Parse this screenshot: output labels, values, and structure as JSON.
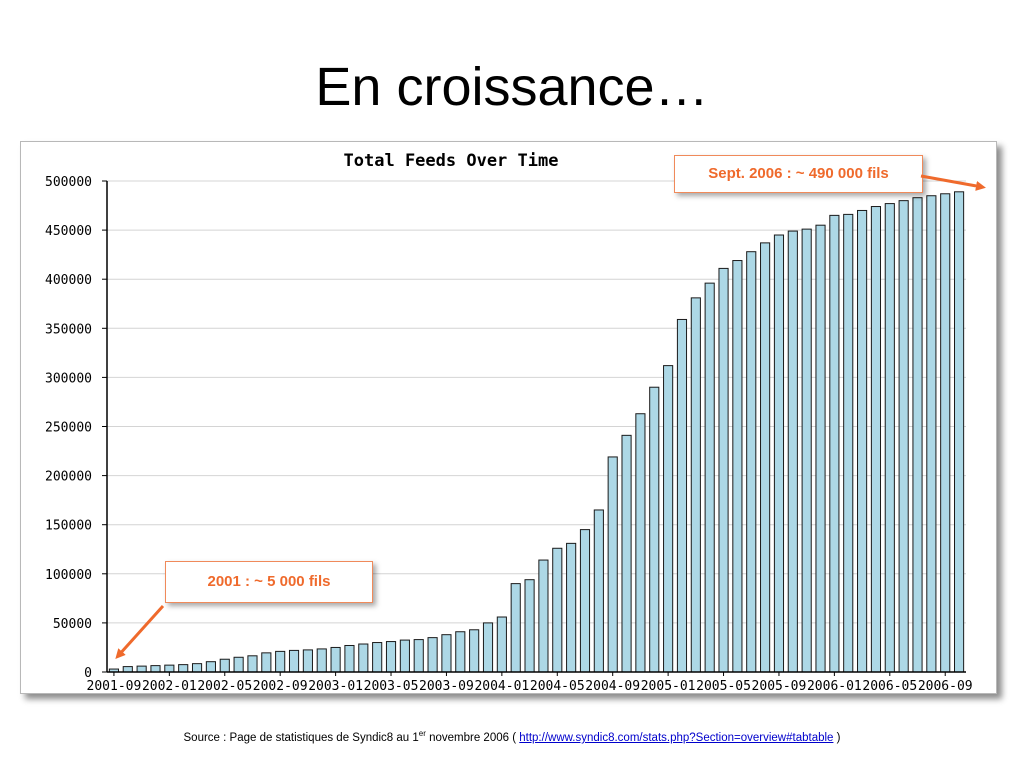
{
  "slide": {
    "title": "En croissance…"
  },
  "chart_data": {
    "type": "bar",
    "title": "Total Feeds Over Time",
    "xlabel": "",
    "ylabel": "",
    "ylim": [
      0,
      500000
    ],
    "yticks": [
      0,
      50000,
      100000,
      150000,
      200000,
      250000,
      300000,
      350000,
      400000,
      450000,
      500000
    ],
    "grid": true,
    "bar_color": "#add8e6",
    "xtick_labels": [
      {
        "index": 0,
        "label": "2001-09"
      },
      {
        "index": 4,
        "label": "2002-01"
      },
      {
        "index": 8,
        "label": "2002-05"
      },
      {
        "index": 12,
        "label": "2002-09"
      },
      {
        "index": 16,
        "label": "2003-01"
      },
      {
        "index": 20,
        "label": "2003-05"
      },
      {
        "index": 24,
        "label": "2003-09"
      },
      {
        "index": 28,
        "label": "2004-01"
      },
      {
        "index": 32,
        "label": "2004-05"
      },
      {
        "index": 36,
        "label": "2004-09"
      },
      {
        "index": 40,
        "label": "2005-01"
      },
      {
        "index": 44,
        "label": "2005-05"
      },
      {
        "index": 48,
        "label": "2005-09"
      },
      {
        "index": 52,
        "label": "2006-01"
      },
      {
        "index": 56,
        "label": "2006-05"
      },
      {
        "index": 60,
        "label": "2006-09"
      }
    ],
    "values": [
      3000,
      5500,
      6000,
      6500,
      7000,
      7500,
      8500,
      10500,
      13000,
      15000,
      16500,
      19500,
      21000,
      22000,
      22500,
      23500,
      25000,
      27000,
      28500,
      30000,
      31000,
      32500,
      33000,
      35000,
      38000,
      41000,
      43000,
      50000,
      56000,
      90000,
      94000,
      114000,
      126000,
      131000,
      145000,
      165000,
      219000,
      241000,
      263000,
      290000,
      312000,
      359000,
      381000,
      396000,
      411000,
      419000,
      428000,
      437000,
      445000,
      449000,
      451000,
      455000,
      465000,
      466000,
      470000,
      474000,
      477000,
      480000,
      483000,
      485000,
      487000,
      489000
    ],
    "annotations": [
      {
        "text": "Sept. 2006 : ~ 490 000 fils",
        "color": "#ef6a2c"
      },
      {
        "text": "2001 : ~ 5 000 fils",
        "color": "#ef6a2c"
      }
    ]
  },
  "source": {
    "prefix": "Source : Page de statistiques de Syndic8 au 1",
    "sup": "er",
    "middle": " novembre 2006 ( ",
    "link": "http://www.syndic8.com/stats.php?Section=overview#tabtable",
    "suffix": " )"
  }
}
